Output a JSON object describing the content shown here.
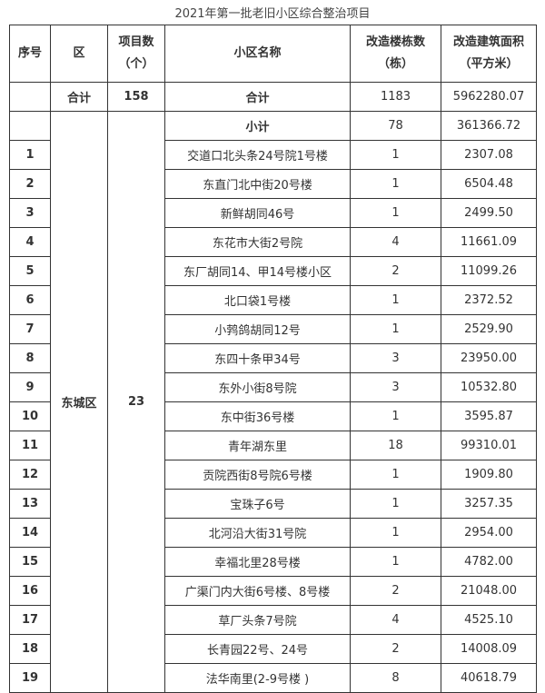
{
  "title": "2021年第一批老旧小区综合整治项目",
  "headers": {
    "seq": "序号",
    "district": "区",
    "count_line1": "项目数",
    "count_line2": "（个）",
    "name": "小区名称",
    "buildings_line1": "改造楼栋数",
    "buildings_line2": "（栋）",
    "area_line1": "改造建筑面积",
    "area_line2": "（平方米）"
  },
  "total": {
    "district": "合计",
    "count": "158",
    "name": "合计",
    "buildings": "1183",
    "area": "5962280.07"
  },
  "group": {
    "district": "东城区",
    "count": "23",
    "subtotal_label": "小计",
    "buildings": "78",
    "area": "361366.72"
  },
  "rows": [
    {
      "seq": "1",
      "name": "交道口北头条24号院1号楼",
      "buildings": "1",
      "area": "2307.08"
    },
    {
      "seq": "2",
      "name": "东直门北中街20号楼",
      "buildings": "1",
      "area": "6504.48"
    },
    {
      "seq": "3",
      "name": "新鲜胡同46号",
      "buildings": "1",
      "area": "2499.50"
    },
    {
      "seq": "4",
      "name": "东花市大街2号院",
      "buildings": "4",
      "area": "11661.09"
    },
    {
      "seq": "5",
      "name": "东厂胡同14、甲14号楼小区",
      "buildings": "2",
      "area": "11099.26"
    },
    {
      "seq": "6",
      "name": "北口袋1号楼",
      "buildings": "1",
      "area": "2372.52"
    },
    {
      "seq": "7",
      "name": "小鹁鸽胡同12号",
      "buildings": "1",
      "area": "2529.90"
    },
    {
      "seq": "8",
      "name": "东四十条甲34号",
      "buildings": "3",
      "area": "23950.00"
    },
    {
      "seq": "9",
      "name": "东外小街8号院",
      "buildings": "3",
      "area": "10532.80"
    },
    {
      "seq": "10",
      "name": "东中街36号楼",
      "buildings": "1",
      "area": "3595.87"
    },
    {
      "seq": "11",
      "name": "青年湖东里",
      "buildings": "18",
      "area": "99310.01"
    },
    {
      "seq": "12",
      "name": "贡院西街8号院6号楼",
      "buildings": "1",
      "area": "1909.80"
    },
    {
      "seq": "13",
      "name": "宝珠子6号",
      "buildings": "1",
      "area": "3257.35"
    },
    {
      "seq": "14",
      "name": "北河沿大街31号院",
      "buildings": "1",
      "area": "2954.00"
    },
    {
      "seq": "15",
      "name": "幸福北里28号楼",
      "buildings": "1",
      "area": "4782.00"
    },
    {
      "seq": "16",
      "name": "广渠门内大街6号楼、8号楼",
      "buildings": "2",
      "area": "21048.00"
    },
    {
      "seq": "17",
      "name": "草厂头条7号院",
      "buildings": "4",
      "area": "4525.10"
    },
    {
      "seq": "18",
      "name": "长青园22号、24号",
      "buildings": "2",
      "area": "14008.09"
    },
    {
      "seq": "19",
      "name": "法华南里(2-9号楼 )",
      "buildings": "8",
      "area": "40618.79"
    }
  ]
}
